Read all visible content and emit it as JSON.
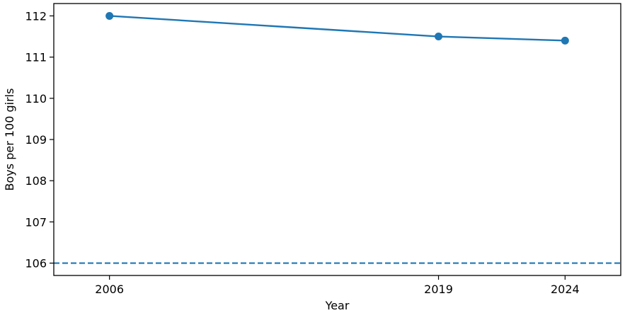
{
  "chart_data": {
    "type": "line",
    "title": "",
    "xlabel": "Year",
    "ylabel": "Boys per 100 girls",
    "x": [
      2006,
      2019,
      2024
    ],
    "series": [
      {
        "values": [
          112.0,
          111.5,
          111.4
        ],
        "color": "#1f77b4"
      }
    ],
    "reference_line": {
      "y": 106,
      "style": "dashed",
      "color": "#1f77b4"
    },
    "xticks": [
      2006,
      2019,
      2024
    ],
    "yticks": [
      106,
      107,
      108,
      109,
      110,
      111,
      112
    ],
    "xlim": [
      2003.8,
      2026.2
    ],
    "ylim": [
      105.7,
      112.3
    ],
    "grid": false,
    "legend": "none"
  }
}
